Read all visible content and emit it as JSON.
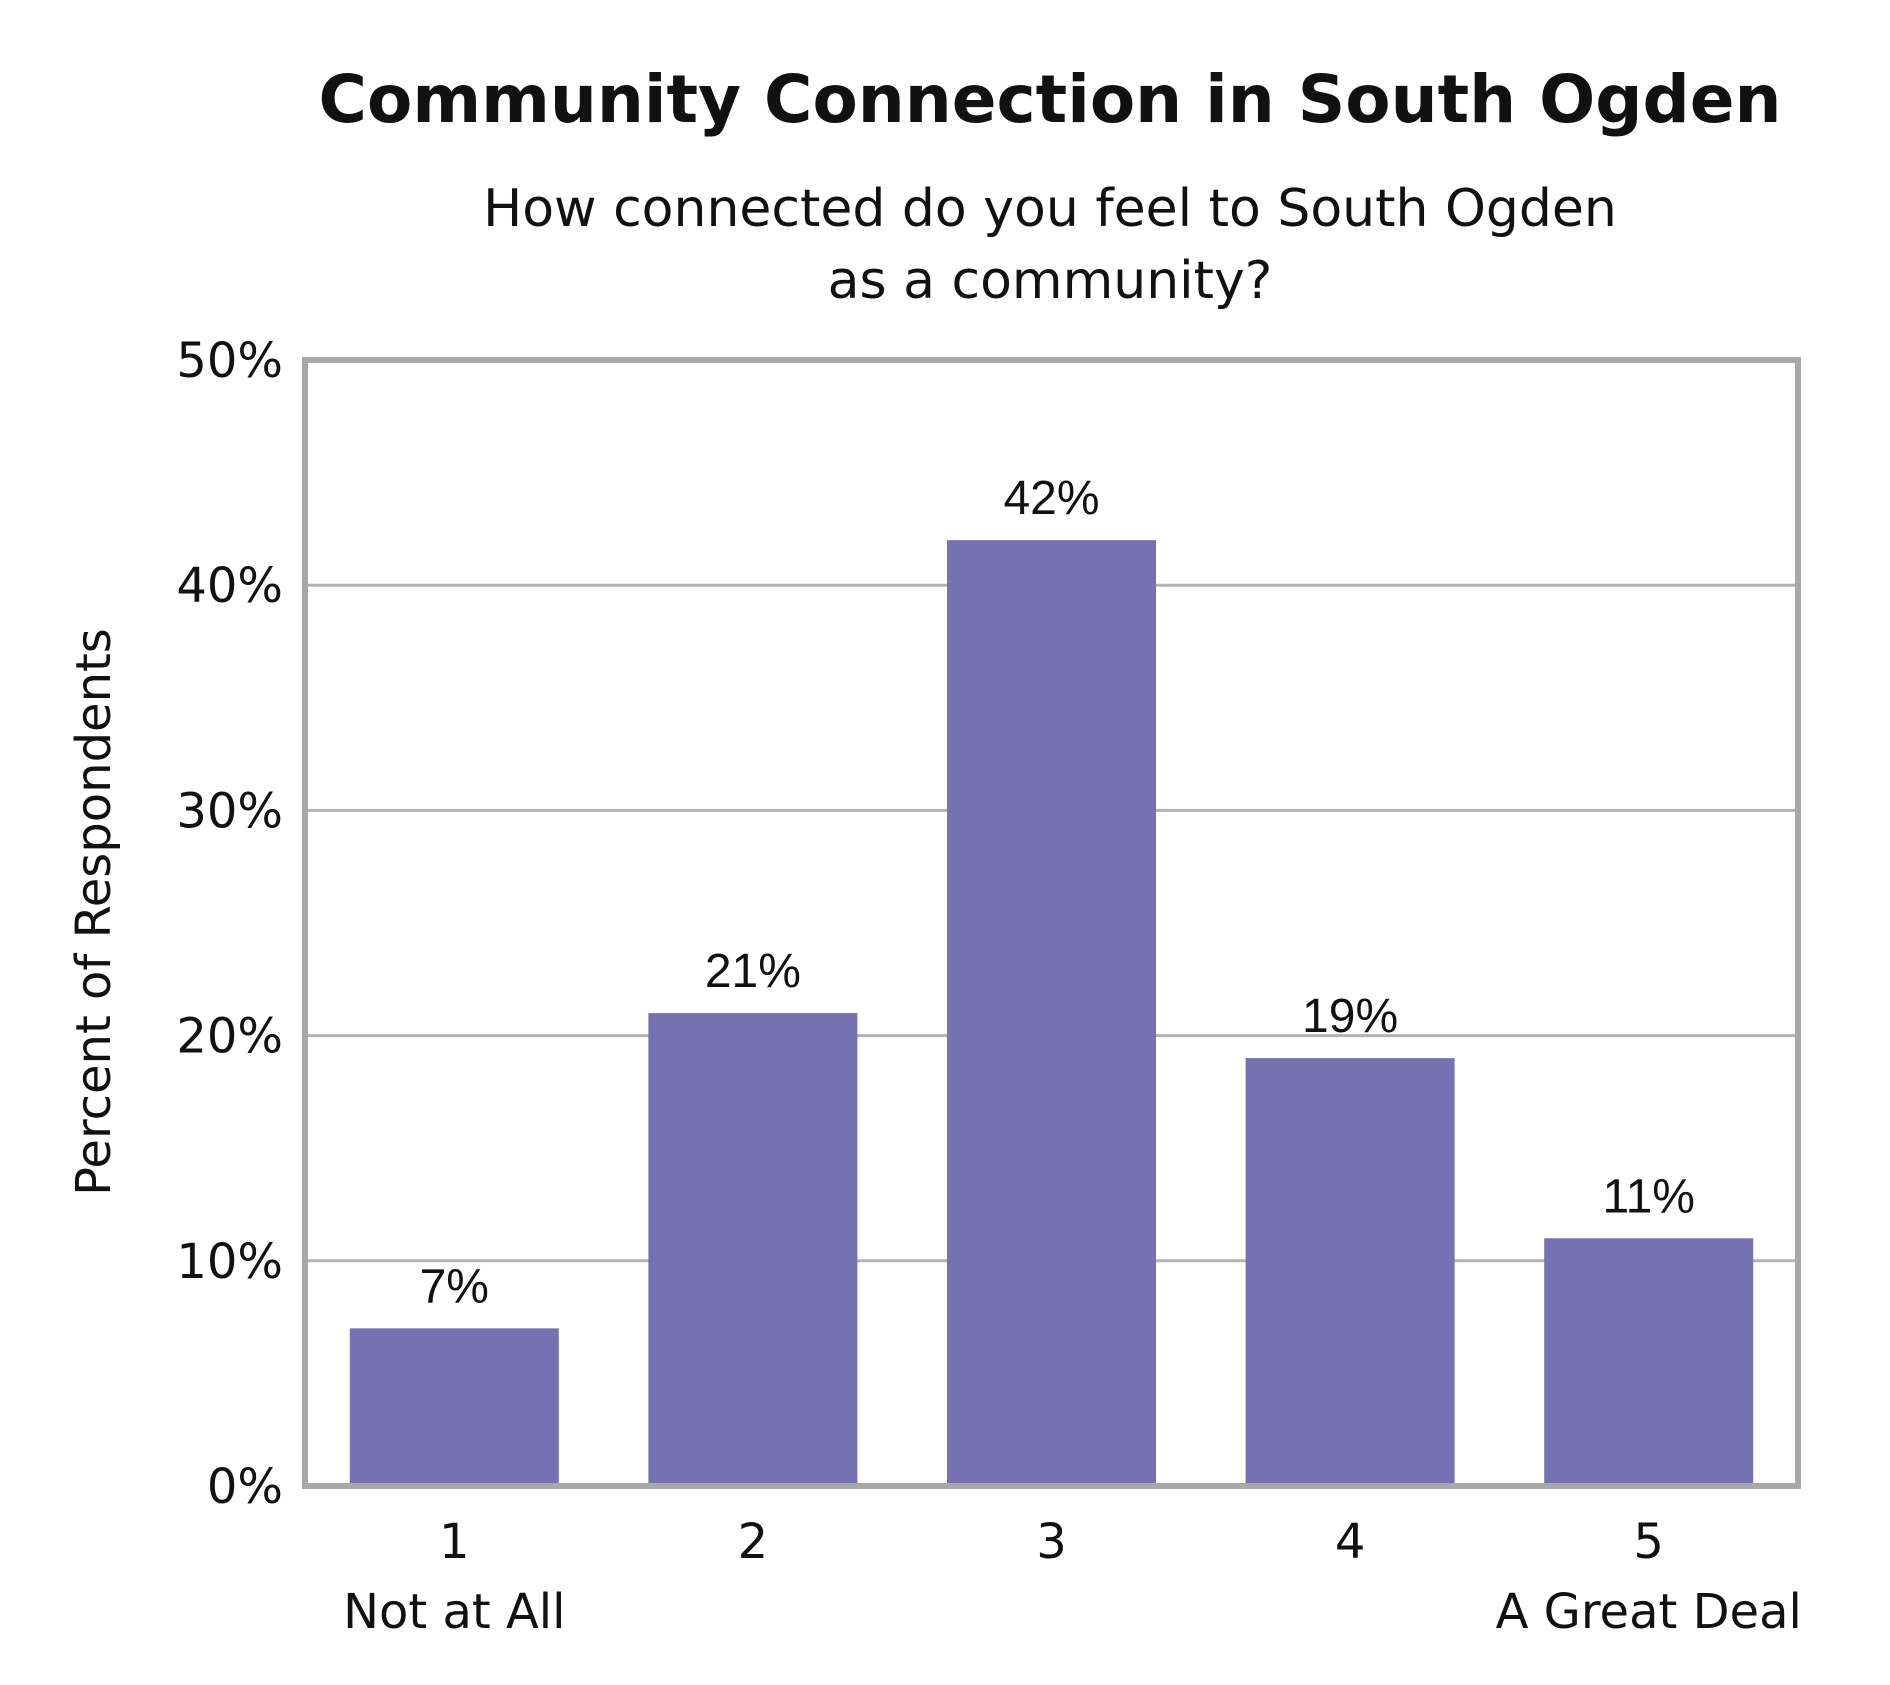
{
  "chart_data": {
    "type": "bar",
    "title": "Community Connection in South Ogden",
    "subtitle": [
      "How connected do you feel to South Ogden",
      "as a community?"
    ],
    "ylabel": "Percent of Respondents",
    "xlabel": "",
    "categories": [
      "1",
      "2",
      "3",
      "4",
      "5"
    ],
    "category_sublabels": [
      "Not at All",
      "",
      "",
      "",
      "A Great Deal"
    ],
    "values": [
      7,
      21,
      42,
      19,
      11
    ],
    "data_labels": [
      "7%",
      "21%",
      "42%",
      "19%",
      "11%"
    ],
    "ylim": [
      0,
      50
    ],
    "yticks": [
      0,
      10,
      20,
      30,
      40,
      50
    ],
    "ytick_labels": [
      "0%",
      "10%",
      "20%",
      "30%",
      "40%",
      "50%"
    ],
    "grid": true,
    "legend": "none",
    "colors": {
      "bar": "#7672b2",
      "grid": "#b3b3b3",
      "frame": "#a8a8a8",
      "text": "#111111"
    }
  }
}
